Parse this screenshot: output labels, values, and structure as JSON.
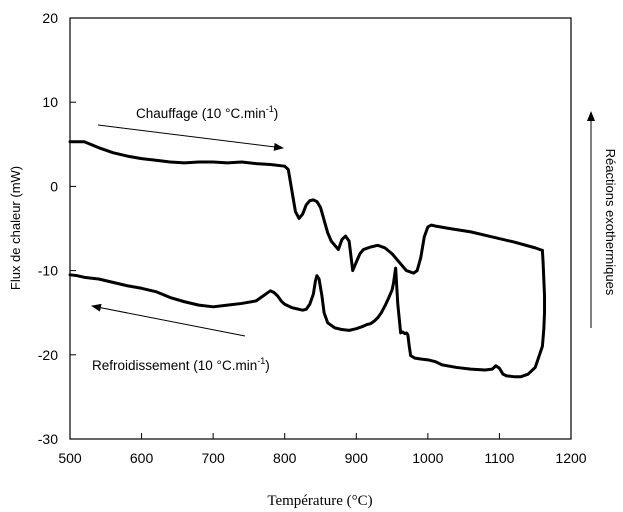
{
  "chart_data": {
    "type": "line",
    "xlabel": "Température (°C)",
    "ylabel": "Flux de chaleur (mW)",
    "right_label": "Réactions exothermiques",
    "xlim": [
      500,
      1200
    ],
    "ylim": [
      -30,
      20
    ],
    "x_ticks": [
      "500",
      "600",
      "700",
      "800",
      "900",
      "1000",
      "1100",
      "1200"
    ],
    "y_ticks": [
      "20",
      "10",
      "0",
      "-10",
      "-20",
      "-30"
    ],
    "x_tick_values": [
      500,
      600,
      700,
      800,
      900,
      1000,
      1100,
      1200
    ],
    "y_tick_values": [
      20,
      10,
      0,
      -10,
      -20,
      -30
    ],
    "grid": false,
    "annotations": {
      "heating": {
        "text": "Chauffage (10 °C.min",
        "sup": "-1",
        "close": ")"
      },
      "cooling": {
        "text": "Refroidissement (10 °C.min",
        "sup": "-1",
        "close": ")"
      }
    },
    "series": [
      {
        "id": "heating",
        "x": [
          500,
          520,
          540,
          560,
          580,
          600,
          620,
          640,
          660,
          680,
          700,
          720,
          740,
          760,
          780,
          800,
          805,
          810,
          815,
          820,
          825,
          830,
          835,
          840,
          845,
          850,
          855,
          860,
          865,
          870,
          875,
          880,
          885,
          890,
          895,
          900,
          905,
          910,
          920,
          930,
          940,
          950,
          960,
          970,
          980,
          985,
          990,
          995,
          1000,
          1005,
          1010,
          1030,
          1060,
          1090,
          1120,
          1150,
          1160
        ],
        "y": [
          5.3,
          5.3,
          4.6,
          4.0,
          3.6,
          3.3,
          3.1,
          2.9,
          2.8,
          2.9,
          2.9,
          2.8,
          2.9,
          2.7,
          2.6,
          2.4,
          2.0,
          -0.5,
          -3.0,
          -3.8,
          -3.3,
          -2.2,
          -1.7,
          -1.6,
          -1.8,
          -2.5,
          -4.0,
          -5.5,
          -6.5,
          -7.0,
          -7.5,
          -6.3,
          -5.9,
          -6.5,
          -10.0,
          -9.0,
          -8.0,
          -7.5,
          -7.2,
          -7.0,
          -7.3,
          -8.0,
          -9.0,
          -10.0,
          -10.3,
          -10.0,
          -8.5,
          -6.0,
          -4.8,
          -4.6,
          -4.7,
          -5.0,
          -5.4,
          -6.0,
          -6.6,
          -7.3,
          -7.6
        ]
      },
      {
        "id": "cooling",
        "x": [
          1160,
          1161,
          1162,
          1163,
          1163,
          1162,
          1160,
          1150,
          1140,
          1130,
          1120,
          1110,
          1105,
          1100,
          1095,
          1090,
          1080,
          1060,
          1040,
          1020,
          1010,
          1000,
          990,
          982,
          976,
          974,
          972,
          970,
          968,
          965,
          962,
          958,
          955,
          952,
          950,
          945,
          940,
          935,
          930,
          925,
          920,
          915,
          910,
          900,
          890,
          880,
          870,
          860,
          855,
          852,
          850,
          848,
          845,
          843,
          840,
          835,
          830,
          825,
          820,
          815,
          810,
          800,
          795,
          790,
          785,
          780,
          775,
          770,
          760,
          740,
          720,
          700,
          680,
          660,
          640,
          620,
          600,
          580,
          560,
          540,
          520,
          510,
          500
        ],
        "y": [
          -7.6,
          -9.0,
          -11.0,
          -13.0,
          -15.0,
          -17.0,
          -19.0,
          -21.5,
          -22.3,
          -22.6,
          -22.6,
          -22.5,
          -22.3,
          -21.6,
          -21.3,
          -21.7,
          -21.8,
          -21.7,
          -21.5,
          -21.2,
          -20.8,
          -20.6,
          -20.5,
          -20.4,
          -20.1,
          -19.0,
          -17.6,
          -17.4,
          -17.5,
          -17.3,
          -17.4,
          -14.0,
          -9.7,
          -11.5,
          -12.3,
          -13.3,
          -14.2,
          -15.0,
          -15.6,
          -16.0,
          -16.3,
          -16.4,
          -16.6,
          -16.9,
          -17.1,
          -17.0,
          -16.8,
          -16.2,
          -15.0,
          -13.0,
          -12.0,
          -11.0,
          -10.6,
          -11.2,
          -12.8,
          -14.0,
          -14.6,
          -14.7,
          -14.6,
          -14.5,
          -14.4,
          -14.0,
          -13.6,
          -13.0,
          -12.6,
          -12.4,
          -12.7,
          -13.0,
          -13.6,
          -13.9,
          -14.1,
          -14.3,
          -14.1,
          -13.7,
          -13.2,
          -12.5,
          -12.1,
          -11.8,
          -11.4,
          -11.0,
          -10.8,
          -10.6,
          -10.5
        ]
      }
    ]
  }
}
